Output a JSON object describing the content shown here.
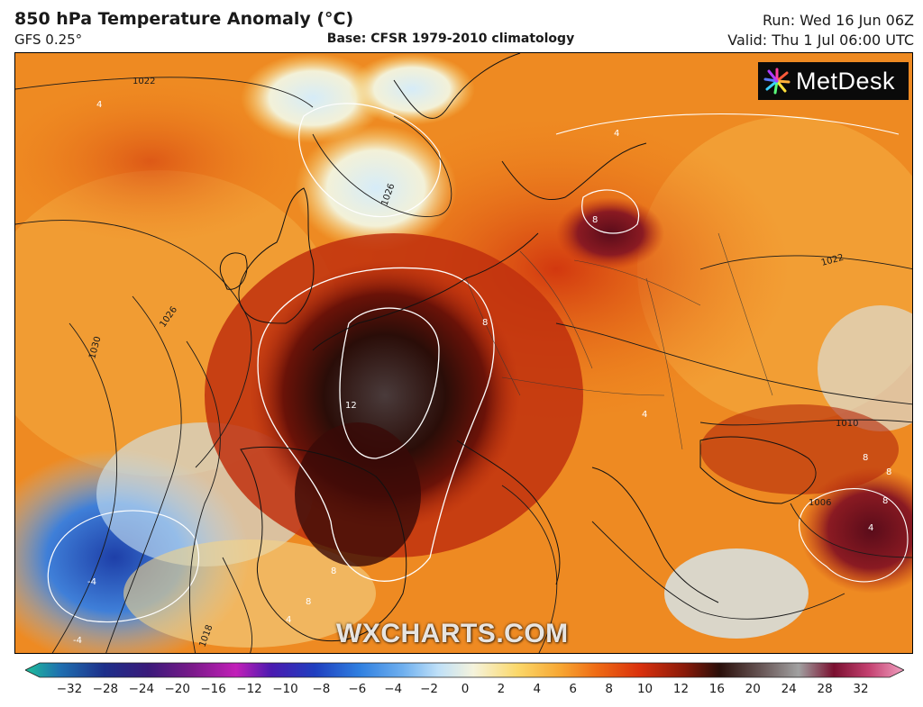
{
  "header": {
    "title": "850 hPa Temperature Anomaly (°C)",
    "model": "GFS 0.25°",
    "base": "Base: CFSR 1979-2010 climatology",
    "run": "Run: Wed 16 Jun 06Z",
    "valid": "Valid: Thu 1 Jul 06:00 UTC"
  },
  "logo": {
    "text": "MetDesk",
    "icon": "metdesk-star-icon"
  },
  "watermark": "WXCHARTS.COM",
  "map": {
    "region": "Europe",
    "isobar_labels": [
      "1022",
      "1026",
      "1026",
      "1030",
      "1022",
      "1018",
      "1010",
      "1006"
    ],
    "anomaly_contour_labels": [
      "4",
      "4",
      "8",
      "8",
      "12",
      "4",
      "-4",
      "-4",
      "8",
      "8",
      "4",
      "8",
      "8",
      "8",
      "4"
    ]
  },
  "colorbar": {
    "ticks": [
      "−32",
      "−28",
      "−24",
      "−20",
      "−16",
      "−12",
      "−10",
      "−8",
      "−6",
      "−4",
      "−2",
      "0",
      "2",
      "4",
      "6",
      "8",
      "10",
      "12",
      "16",
      "20",
      "24",
      "28",
      "32"
    ],
    "colors": [
      "#1dbf9a",
      "#1f6fb0",
      "#1d2f8a",
      "#3a1a7a",
      "#7a1a8a",
      "#c21fb8",
      "#4a1ab0",
      "#1f3fbf",
      "#2f7fe0",
      "#6fb0ef",
      "#bfe0f8",
      "#f5f3dc",
      "#fbd86a",
      "#f7a531",
      "#ef6b14",
      "#d9300c",
      "#8a1a0a",
      "#2a0f0a",
      "#6b5a5a",
      "#a1a1a1",
      "#7a1030",
      "#c44070",
      "#f0a0c0"
    ]
  }
}
